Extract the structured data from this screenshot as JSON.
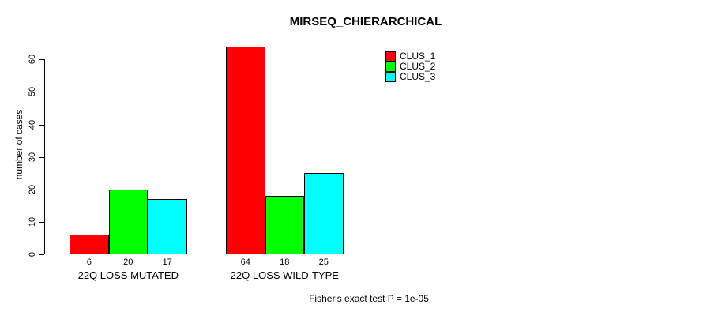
{
  "chart_data": {
    "type": "bar",
    "title": "MIRSEQ_CHIERARCHICAL",
    "ylabel": "number of cases",
    "xlabel": "",
    "categories": [
      "22Q LOSS MUTATED",
      "22Q LOSS WILD-TYPE"
    ],
    "series": [
      {
        "name": "CLUS_1",
        "color": "#ff0000",
        "values": [
          6,
          64
        ]
      },
      {
        "name": "CLUS_2",
        "color": "#00ff00",
        "values": [
          20,
          18
        ]
      },
      {
        "name": "CLUS_3",
        "color": "#00ffff",
        "values": [
          17,
          25
        ]
      }
    ],
    "bar_value_labels": [
      [
        "6",
        "20",
        "17"
      ],
      [
        "64",
        "18",
        "25"
      ]
    ],
    "yticks": [
      "0",
      "10",
      "20",
      "30",
      "40",
      "50",
      "60"
    ],
    "ylim": [
      0,
      66
    ],
    "grid": false,
    "legend_position": "top-right",
    "annotation": "Fisher's exact test P = 1e-05"
  }
}
